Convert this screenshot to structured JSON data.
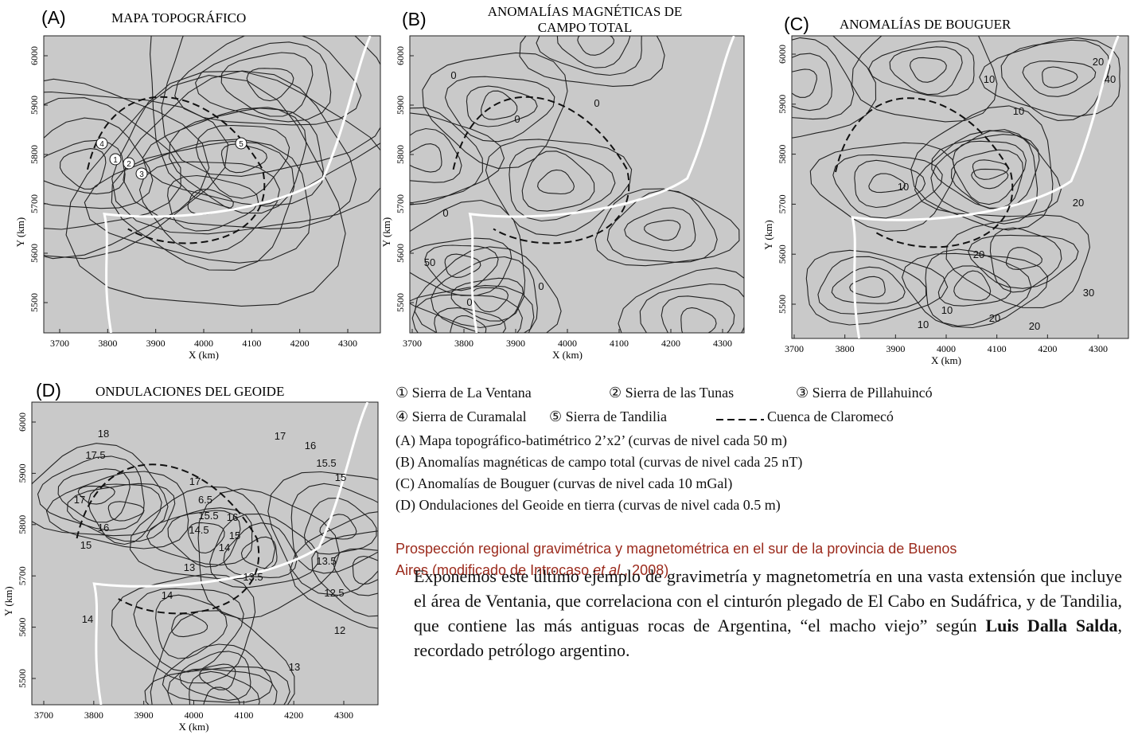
{
  "panels": [
    {
      "label": "(A)",
      "title": [
        "MAPA TOPOGRÁFICO"
      ],
      "x_label": "X (km)",
      "y_label": "Y (km)",
      "xticks": [
        3700,
        3800,
        3900,
        4000,
        4100,
        4200,
        4300
      ],
      "yticks": [
        5500,
        5600,
        5700,
        5800,
        5900,
        6000
      ],
      "annotations": [
        "4",
        "1",
        "2",
        "3",
        "5"
      ]
    },
    {
      "label": "(B)",
      "title": [
        "ANOMALÍAS MAGNÉTICAS DE",
        "CAMPO TOTAL"
      ],
      "x_label": "X (km)",
      "y_label": "Y (km)",
      "xticks": [
        3700,
        3800,
        3900,
        4000,
        4100,
        4200,
        4300
      ],
      "yticks": [
        5500,
        5600,
        5700,
        5800,
        5900,
        6000
      ],
      "annotations": [
        "0",
        "0",
        "0",
        "50",
        "0",
        "0",
        "0"
      ]
    },
    {
      "label": "(C)",
      "title": [
        "ANOMALÍAS DE BOUGUER"
      ],
      "x_label": "X (km)",
      "y_label": "Y (km)",
      "xticks": [
        3700,
        3800,
        3900,
        4000,
        4100,
        4200,
        4300
      ],
      "yticks": [
        5500,
        5600,
        5700,
        5800,
        5900,
        6000
      ],
      "annotations": [
        "20",
        "40",
        "10",
        "10",
        "10",
        "20",
        "20",
        "10",
        "20",
        "30",
        "20",
        "10"
      ]
    },
    {
      "label": "(D)",
      "title": [
        "ONDULACIONES DEL GEOIDE"
      ],
      "x_label": "X (km)",
      "y_label": "Y (km)",
      "xticks": [
        3700,
        3800,
        3900,
        4000,
        4100,
        4200,
        4300
      ],
      "yticks": [
        5500,
        5600,
        5700,
        5800,
        5900,
        6000
      ],
      "annotations": [
        "18",
        "17.5",
        "17",
        "17",
        "16",
        "15.5",
        "15",
        "17",
        "6.5",
        "15.5",
        "16",
        "14.5",
        "15",
        "14",
        "16",
        "15",
        "13",
        "14",
        "14",
        "13.5",
        "13.5",
        "12.5",
        "12",
        "13"
      ]
    }
  ],
  "legend": {
    "sierras": [
      "① Sierra de La Ventana",
      "② Sierra de las Tunas",
      "③ Sierra de Pillahuincó",
      "④ Sierra de Curamalal",
      "⑤ Sierra de Tandilia"
    ],
    "basin": "Cuenca de Claromecó",
    "descriptions": [
      "(A) Mapa topográfico-batimétrico 2’x2’ (curvas de nivel cada 50 m)",
      "(B) Anomalías magnéticas de campo total (curvas de nivel cada 25 nT)",
      "(C) Anomalías de Bouguer (curvas de nivel cada 10 mGal)",
      "(D) Ondulaciones del Geoide en tierra (curvas de nivel cada 0.5 m)"
    ]
  },
  "caption": {
    "before": "Prospección regional gravimétrica y magnetométrica en el sur de la provincia de Buenos Aires (modificado de Introcaso",
    "italic": "et al.",
    "after": ", 2008)"
  },
  "paragraph": {
    "before": "Exponemos este último ejemplo de gravimetría y magnetometría en una vasta extensión que incluye el área de Ventania, que correlaciona con el cinturón plegado de El Cabo en Sudáfrica, y de Tandilia, que contiene las más antiguas rocas de Argentina, “el macho viejo” según",
    "bold": "Luis Dalla Salda",
    "after": ", recordado petrólogo argentino."
  }
}
